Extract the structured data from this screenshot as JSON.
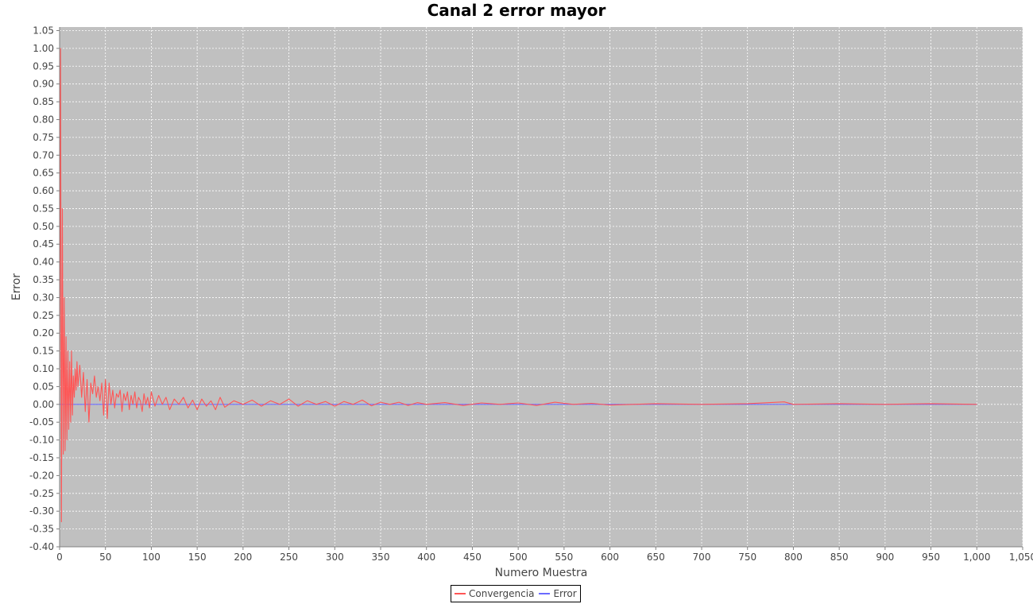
{
  "chart_data": {
    "type": "line",
    "title": "Canal 2 error mayor",
    "xlabel": "Numero Muestra",
    "ylabel": "Error",
    "xlim": [
      0,
      1050
    ],
    "ylim": [
      -0.4,
      1.06
    ],
    "x_ticks": [
      "0",
      "50",
      "100",
      "150",
      "200",
      "250",
      "300",
      "350",
      "400",
      "450",
      "500",
      "550",
      "600",
      "650",
      "700",
      "750",
      "800",
      "850",
      "900",
      "950",
      "1,000",
      "1,050"
    ],
    "y_ticks": [
      "1.05",
      "1.00",
      "0.95",
      "0.90",
      "0.85",
      "0.80",
      "0.75",
      "0.70",
      "0.65",
      "0.60",
      "0.55",
      "0.50",
      "0.45",
      "0.40",
      "0.35",
      "0.30",
      "0.25",
      "0.20",
      "0.15",
      "0.10",
      "0.05",
      "0.00",
      "-0.05",
      "-0.10",
      "-0.15",
      "-0.20",
      "-0.25",
      "-0.30",
      "-0.35",
      "-0.40"
    ],
    "grid": true,
    "legend_position": "bottom",
    "background_color": "#c0c0c0",
    "series": [
      {
        "name": "Convergencia",
        "color": "#ff5555",
        "x": [
          0,
          1,
          2,
          3,
          4,
          5,
          6,
          7,
          8,
          9,
          10,
          11,
          12,
          13,
          14,
          15,
          16,
          17,
          18,
          19,
          20,
          22,
          24,
          26,
          28,
          30,
          32,
          34,
          36,
          38,
          40,
          42,
          44,
          46,
          48,
          50,
          52,
          54,
          56,
          58,
          60,
          62,
          64,
          66,
          68,
          70,
          72,
          74,
          76,
          78,
          80,
          82,
          84,
          86,
          88,
          90,
          92,
          94,
          96,
          98,
          100,
          104,
          108,
          112,
          116,
          120,
          125,
          130,
          135,
          140,
          145,
          150,
          155,
          160,
          165,
          170,
          175,
          180,
          190,
          200,
          210,
          220,
          230,
          240,
          250,
          260,
          270,
          280,
          290,
          300,
          310,
          320,
          330,
          340,
          350,
          360,
          370,
          380,
          390,
          400,
          420,
          440,
          460,
          480,
          500,
          520,
          540,
          560,
          580,
          600,
          650,
          700,
          750,
          790,
          800,
          850,
          900,
          950,
          1000
        ],
        "values": [
          0.0,
          1.0,
          -0.33,
          0.55,
          -0.14,
          0.3,
          -0.13,
          0.19,
          -0.1,
          0.15,
          -0.07,
          0.12,
          -0.05,
          0.15,
          -0.03,
          0.08,
          0.02,
          0.1,
          0.04,
          0.12,
          0.05,
          0.11,
          0.02,
          0.09,
          -0.02,
          0.07,
          -0.05,
          0.06,
          0.03,
          0.08,
          0.02,
          0.05,
          0.01,
          0.06,
          -0.03,
          0.07,
          -0.04,
          0.06,
          0.0,
          0.04,
          -0.01,
          0.03,
          0.02,
          0.04,
          -0.02,
          0.03,
          0.01,
          0.035,
          -0.015,
          0.025,
          0.0,
          0.035,
          -0.01,
          0.02,
          0.01,
          -0.02,
          0.03,
          0.0,
          0.02,
          -0.01,
          0.035,
          -0.005,
          0.025,
          0.0,
          0.02,
          -0.015,
          0.015,
          0.0,
          0.02,
          -0.01,
          0.012,
          -0.015,
          0.015,
          -0.005,
          0.01,
          -0.015,
          0.02,
          -0.008,
          0.01,
          0.0,
          0.012,
          -0.005,
          0.01,
          0.0,
          0.015,
          -0.005,
          0.01,
          0.0,
          0.008,
          -0.005,
          0.008,
          0.0,
          0.012,
          -0.004,
          0.006,
          0.0,
          0.006,
          -0.003,
          0.005,
          0.0,
          0.005,
          -0.003,
          0.004,
          0.0,
          0.004,
          -0.003,
          0.006,
          0.0,
          0.003,
          -0.002,
          0.002,
          0.0,
          0.002,
          0.007,
          0.0,
          0.002,
          0.0,
          0.002,
          0.0
        ]
      },
      {
        "name": "Error",
        "color": "#6b6bff",
        "x": [
          0,
          1000
        ],
        "values": [
          0.0,
          0.0
        ]
      }
    ]
  }
}
